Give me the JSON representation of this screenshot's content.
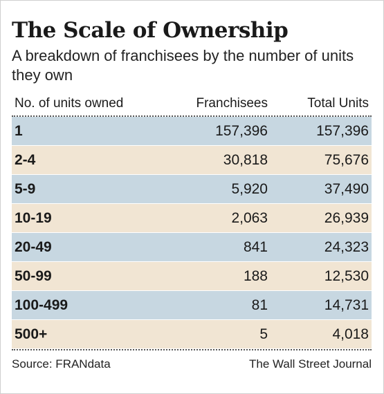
{
  "title": "The Scale of Ownership",
  "subtitle": "A breakdown of franchisees by the number of units they own",
  "colors": {
    "row_blue": "#c7d7e1",
    "row_tan": "#f1e5d3"
  },
  "chart_data": {
    "type": "table",
    "title": "The Scale of Ownership",
    "subtitle": "A breakdown of franchisees by the number of units they own",
    "columns": [
      "No. of units owned",
      "Franchisees",
      "Total Units"
    ],
    "rows": [
      [
        "1",
        "157,396",
        "157,396"
      ],
      [
        "2-4",
        "30,818",
        "75,676"
      ],
      [
        "5-9",
        "5,920",
        "37,490"
      ],
      [
        "10-19",
        "2,063",
        "26,939"
      ],
      [
        "20-49",
        "841",
        "24,323"
      ],
      [
        "50-99",
        "188",
        "12,530"
      ],
      [
        "100-499",
        "81",
        "14,731"
      ],
      [
        "500+",
        "5",
        "4,018"
      ]
    ]
  },
  "source": "Source: FRANdata",
  "credit": "The Wall Street Journal"
}
